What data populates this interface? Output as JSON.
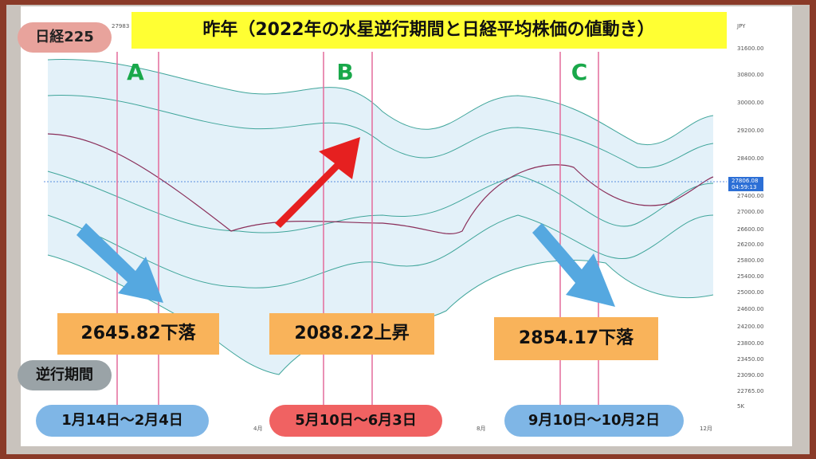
{
  "header": {
    "badge": "日経225",
    "title": "昨年（2022年の水星逆行期間と日経平均株価の値動き）"
  },
  "chart": {
    "currency": "JPY",
    "top_left_value": "27983",
    "price_labels": [
      "31600.00",
      "30800.00",
      "30000.00",
      "29200.00",
      "28400.00",
      "27400.00",
      "27000.00",
      "26600.00",
      "26200.00",
      "25800.00",
      "25400.00",
      "25000.00",
      "24600.00",
      "24200.00",
      "23800.00",
      "23450.00",
      "23090.00",
      "22765.00"
    ],
    "current_price": "27806.08",
    "countdown": "04:59:13",
    "volume_label": "5K",
    "month_labels": [
      "4月",
      "8月",
      "12月"
    ]
  },
  "period_label": "逆行期間",
  "periods": [
    {
      "letter": "A",
      "change": "2645.82下落",
      "dates": "1月14日～2月4日"
    },
    {
      "letter": "B",
      "change": "2088.22上昇",
      "dates": "5月10日～6月3日"
    },
    {
      "letter": "C",
      "change": "2854.17下落",
      "dates": "9月10日～10月2日"
    }
  ]
}
